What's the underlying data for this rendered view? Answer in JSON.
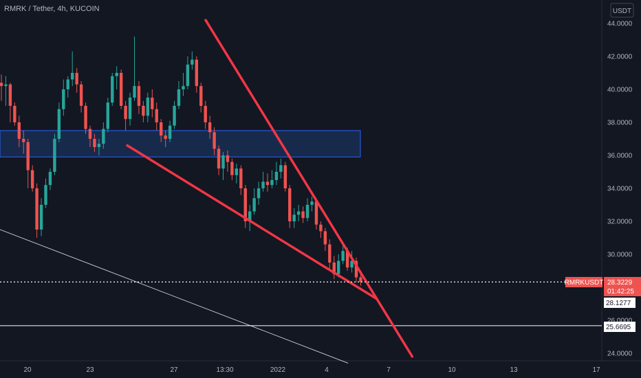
{
  "header": {
    "title": "RMRK / Tether, 4h, KUCOIN",
    "currency_button": "USDT"
  },
  "colors": {
    "background": "#131722",
    "up": "#26a69a",
    "down": "#ef5350",
    "trendline": "#f23645",
    "zone_fill": "#1e3a6e",
    "zone_border": "#2962ff",
    "grid": "#1f2330",
    "text": "#b2b5be"
  },
  "chart_data": {
    "type": "candlestick",
    "title": "RMRK / Tether, 4h, KUCOIN",
    "ylabel": "USDT",
    "y_ticks": [
      "24.0000",
      "26.0000",
      "28.0000",
      "30.0000",
      "32.0000",
      "34.0000",
      "36.0000",
      "38.0000",
      "40.0000",
      "42.0000",
      "44.0000"
    ],
    "ylim": [
      23.4,
      44.6
    ],
    "x_ticks": [
      "20",
      "23",
      "27",
      "13:30",
      "2022",
      "4",
      "7",
      "10",
      "13",
      "17"
    ],
    "grid": false,
    "price_tags": [
      {
        "label": "RMRKUSDT",
        "value": "28.3229",
        "sub": "01:42:25",
        "color": "#ef5350"
      },
      {
        "value": "28.1277",
        "color": "#ffffff"
      },
      {
        "value": "25.6695",
        "color": "#ffffff"
      }
    ],
    "last_price": 28.3229,
    "horizontal_line": 25.6695,
    "zone": {
      "y_range": [
        35.9,
        37.5
      ],
      "x_range": [
        "start",
        "31 Dec"
      ]
    },
    "trendlines": [
      {
        "name": "upper",
        "points": [
          [
            20.2,
            44.2
          ],
          [
            27.8,
            42.0
          ],
          [
            31.2,
            35.8
          ],
          [
            33.0,
            33.2
          ],
          [
            34.5,
            30.4
          ],
          [
            37.8,
            28.3
          ],
          [
            40.5,
            23.8
          ]
        ]
      },
      {
        "name": "lower",
        "points": [
          [
            12.5,
            36.6
          ],
          [
            17.2,
            35.8
          ],
          [
            22.5,
            33.0
          ],
          [
            30.5,
            30.2
          ],
          [
            37.0,
            27.3
          ]
        ]
      }
    ],
    "diagonal_line": {
      "points": [
        [
          0,
          31.5
        ],
        [
          34.2,
          23.4
        ]
      ]
    },
    "candles": [
      [
        40.4,
        40.2,
        40.9,
        39.3
      ],
      [
        40.2,
        40.3,
        40.8,
        39.0
      ],
      [
        40.3,
        39.0,
        40.4,
        38.0
      ],
      [
        39.0,
        38.0,
        39.2,
        37.8
      ],
      [
        38.0,
        37.0,
        38.4,
        36.5
      ],
      [
        37.0,
        36.8,
        37.5,
        36.1
      ],
      [
        36.8,
        35.1,
        37.0,
        34.0
      ],
      [
        35.1,
        34.0,
        35.4,
        33.8
      ],
      [
        34.0,
        31.5,
        34.3,
        31.0
      ],
      [
        31.5,
        33.0,
        33.4,
        31.1
      ],
      [
        33.0,
        34.2,
        34.6,
        32.8
      ],
      [
        34.2,
        35.0,
        35.2,
        33.9
      ],
      [
        35.0,
        37.0,
        37.3,
        34.8
      ],
      [
        37.0,
        38.8,
        39.2,
        36.8
      ],
      [
        38.8,
        40.0,
        40.6,
        38.4
      ],
      [
        40.0,
        40.6,
        40.8,
        39.5
      ],
      [
        40.6,
        41.0,
        42.3,
        40.2
      ],
      [
        41.0,
        40.3,
        41.3,
        39.8
      ],
      [
        40.3,
        39.0,
        40.5,
        38.6
      ],
      [
        39.0,
        37.6,
        39.2,
        37.3
      ],
      [
        37.6,
        37.0,
        37.8,
        36.5
      ],
      [
        37.0,
        36.5,
        37.3,
        36.2
      ],
      [
        36.5,
        36.7,
        37.0,
        36.0
      ],
      [
        36.7,
        37.6,
        38.0,
        36.4
      ],
      [
        37.6,
        39.2,
        39.5,
        37.4
      ],
      [
        39.2,
        40.8,
        41.0,
        39.0
      ],
      [
        40.8,
        41.0,
        41.4,
        40.0
      ],
      [
        41.0,
        39.0,
        41.2,
        38.8
      ],
      [
        39.0,
        38.2,
        39.3,
        37.5
      ],
      [
        38.2,
        39.5,
        39.8,
        37.8
      ],
      [
        39.5,
        40.2,
        43.2,
        39.3
      ],
      [
        40.2,
        39.0,
        40.5,
        38.5
      ],
      [
        39.0,
        38.4,
        39.3,
        38.0
      ],
      [
        38.4,
        39.5,
        39.8,
        38.0
      ],
      [
        39.5,
        38.8,
        40.0,
        38.3
      ],
      [
        38.8,
        38.0,
        39.2,
        37.5
      ],
      [
        38.0,
        37.2,
        38.2,
        36.8
      ],
      [
        37.2,
        37.0,
        37.5,
        36.5
      ],
      [
        37.0,
        37.8,
        38.1,
        36.8
      ],
      [
        37.8,
        39.0,
        39.3,
        37.6
      ],
      [
        39.0,
        40.0,
        40.5,
        38.8
      ],
      [
        40.0,
        40.2,
        41.0,
        39.6
      ],
      [
        40.2,
        41.5,
        42.0,
        40.0
      ],
      [
        41.5,
        41.8,
        42.3,
        41.2
      ],
      [
        41.8,
        40.2,
        42.0,
        39.8
      ],
      [
        40.2,
        39.0,
        40.4,
        38.6
      ],
      [
        39.0,
        38.0,
        39.3,
        37.6
      ],
      [
        38.0,
        37.4,
        38.4,
        37.0
      ],
      [
        37.4,
        36.4,
        37.7,
        36.0
      ],
      [
        36.4,
        35.2,
        36.6,
        34.8
      ],
      [
        35.2,
        36.0,
        36.2,
        34.5
      ],
      [
        36.0,
        35.6,
        36.3,
        35.0
      ],
      [
        35.6,
        34.8,
        35.8,
        34.5
      ],
      [
        34.8,
        35.2,
        35.5,
        34.3
      ],
      [
        35.2,
        34.0,
        35.4,
        33.6
      ],
      [
        34.0,
        32.0,
        34.2,
        31.6
      ],
      [
        32.0,
        32.6,
        33.0,
        31.4
      ],
      [
        32.6,
        33.4,
        34.0,
        32.4
      ],
      [
        33.4,
        34.0,
        34.4,
        33.0
      ],
      [
        34.0,
        34.4,
        35.0,
        33.8
      ],
      [
        34.4,
        34.2,
        34.9,
        33.8
      ],
      [
        34.2,
        34.5,
        35.1,
        34.0
      ],
      [
        34.5,
        35.0,
        35.6,
        34.2
      ],
      [
        35.0,
        35.4,
        35.8,
        34.6
      ],
      [
        35.4,
        34.0,
        35.6,
        33.8
      ],
      [
        34.0,
        32.0,
        34.2,
        31.6
      ],
      [
        32.0,
        32.4,
        32.8,
        31.6
      ],
      [
        32.4,
        32.6,
        33.0,
        32.0
      ],
      [
        32.6,
        32.2,
        32.9,
        31.9
      ],
      [
        32.2,
        33.0,
        33.4,
        32.0
      ],
      [
        33.0,
        33.2,
        33.5,
        32.6
      ],
      [
        33.2,
        31.8,
        33.4,
        31.5
      ],
      [
        31.8,
        31.4,
        32.0,
        31.0
      ],
      [
        31.4,
        30.6,
        31.6,
        30.2
      ],
      [
        30.6,
        29.5,
        30.9,
        29.1
      ],
      [
        29.5,
        28.8,
        29.9,
        28.5
      ],
      [
        28.8,
        29.6,
        30.0,
        28.6
      ],
      [
        29.6,
        30.2,
        30.6,
        29.4
      ],
      [
        30.2,
        29.2,
        30.4,
        29.0
      ],
      [
        29.2,
        29.6,
        30.2,
        28.9
      ],
      [
        29.6,
        28.6,
        29.8,
        28.3
      ],
      [
        28.6,
        28.3229,
        29.0,
        28.1
      ]
    ]
  }
}
